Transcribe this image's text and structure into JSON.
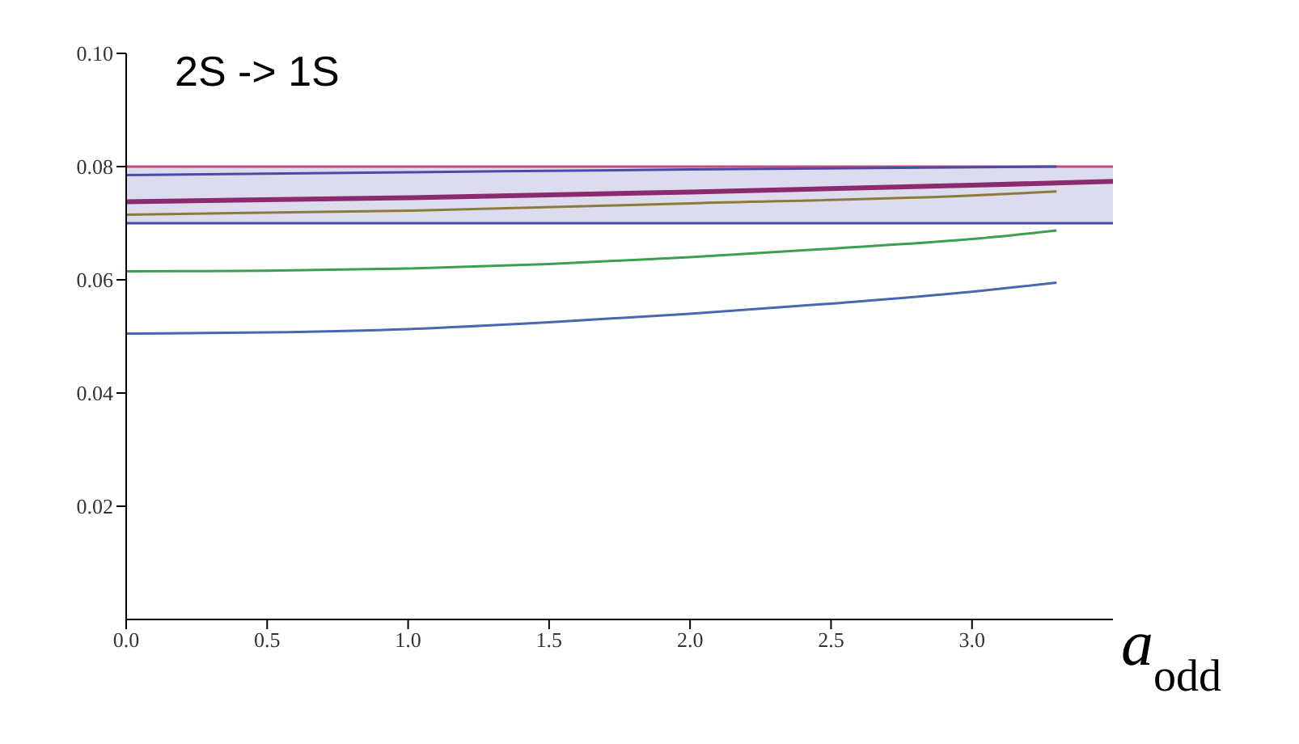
{
  "chart_data": {
    "type": "line",
    "title": "2S -> 1S",
    "xlabel": "a$_{odd}$",
    "xlim": [
      0,
      3.5
    ],
    "ylim": [
      0,
      0.1
    ],
    "xticks": [
      {
        "value": 0,
        "label": "0.0"
      },
      {
        "value": 0.5,
        "label": "0.5"
      },
      {
        "value": 1,
        "label": "1.0"
      },
      {
        "value": 1.5,
        "label": "1.5"
      },
      {
        "value": 2,
        "label": "2.0"
      },
      {
        "value": 2.5,
        "label": "2.5"
      },
      {
        "value": 3,
        "label": "3.0"
      }
    ],
    "yticks": [
      {
        "value": 0.02,
        "label": "0.02"
      },
      {
        "value": 0.04,
        "label": "0.04"
      },
      {
        "value": 0.06,
        "label": "0.06"
      },
      {
        "value": 0.08,
        "label": "0.08"
      },
      {
        "value": 0.1,
        "label": "0.10"
      }
    ],
    "bands": [
      {
        "axis": "y",
        "from": 0.07,
        "to": 0.08,
        "color": "#dcdcee"
      }
    ],
    "series": [
      {
        "color": "#c0507a",
        "x": [
          0,
          3.5
        ],
        "values": [
          0.08,
          0.08
        ]
      },
      {
        "color": "#4a4aa8",
        "x": [
          0,
          1,
          2,
          3.3
        ],
        "values": [
          0.0785,
          0.079,
          0.0795,
          0.08
        ]
      },
      {
        "color": "#8b2a6e",
        "x": [
          0,
          1,
          2,
          3,
          3.5
        ],
        "values": [
          0.0738,
          0.0745,
          0.0755,
          0.0767,
          0.0774
        ]
      },
      {
        "color": "#8c7a3c",
        "x": [
          0,
          1,
          2,
          3,
          3.3
        ],
        "values": [
          0.0715,
          0.0722,
          0.0735,
          0.0749,
          0.0756
        ]
      },
      {
        "color": "#4a4aa8",
        "x": [
          0,
          3.5
        ],
        "values": [
          0.07,
          0.07
        ]
      },
      {
        "color": "#3aa050",
        "x": [
          0,
          0.5,
          1,
          1.5,
          2,
          2.5,
          3,
          3.3
        ],
        "values": [
          0.0615,
          0.0616,
          0.062,
          0.0628,
          0.064,
          0.0655,
          0.0672,
          0.0687
        ]
      },
      {
        "color": "#4a68b0",
        "x": [
          0,
          0.5,
          1,
          1.5,
          2,
          2.5,
          3,
          3.3
        ],
        "values": [
          0.0505,
          0.0507,
          0.0513,
          0.0525,
          0.054,
          0.0558,
          0.0579,
          0.0595
        ]
      }
    ],
    "legend": false,
    "grid": false,
    "marker": "none",
    "line_style": "solid"
  }
}
